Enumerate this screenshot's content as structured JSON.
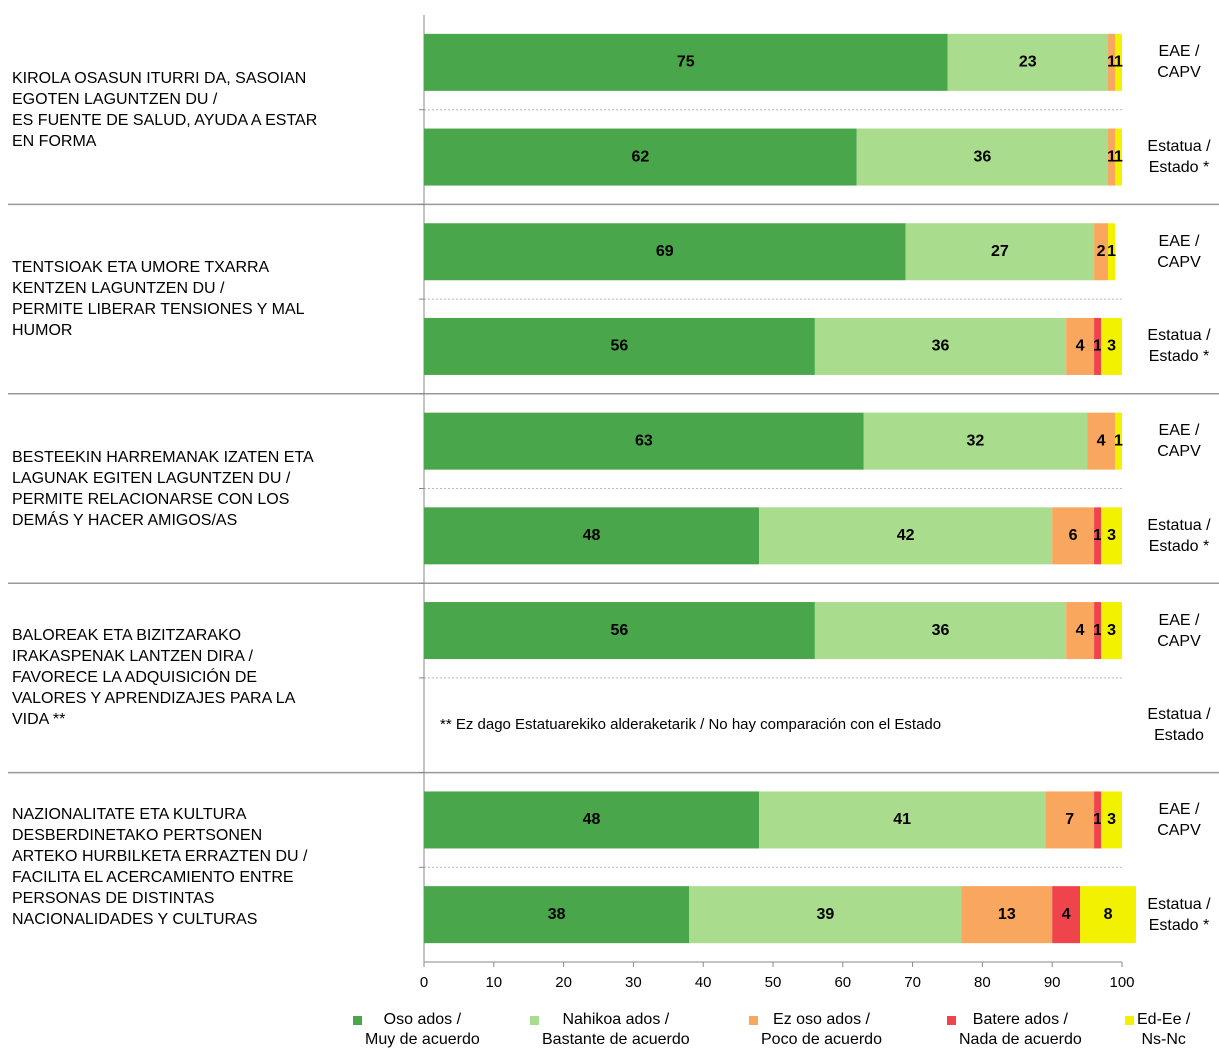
{
  "chart_data": {
    "type": "stacked_barh",
    "group_labels": [
      "KIROLA OSASUN ITURRI DA, SASOIAN\nEGOTEN LAGUNTZEN DU /\nES FUENTE DE SALUD, AYUDA A ESTAR\nEN FORMA",
      "TENTSIOAK ETA UMORE TXARRA\nKENTZEN LAGUNTZEN DU /\nPERMITE LIBERAR TENSIONES Y MAL\nHUMOR",
      "BESTEEKIN HARREMANAK IZATEN ETA\nLAGUNAK EGITEN LAGUNTZEN DU /\nPERMITE RELACIONARSE CON LOS\nDEMÁS Y HACER AMIGOS/AS",
      "BALOREAK ETA BIZITZARAKO\nIRAKASPENAK LANTZEN DIRA /\nFAVORECE LA ADQUISICIÓN DE\nVALORES Y APRENDIZAJES PARA LA\nVIDA **",
      "NAZIONALITATE ETA KULTURA\nDESBERDINETAKO PERTSONEN\nARTEKO HURBILKETA ERRAZTEN DU /\nFACILITA EL ACERCAMIENTO ENTRE\nPERSONAS DE DISTINTAS\nNACIONALIDADES Y CULTURAS"
    ],
    "categories": [
      "EAE /\nCAPV",
      "Estatua /\nEstado *",
      "EAE /\nCAPV",
      "Estatua /\nEstado *",
      "EAE /\nCAPV",
      "Estatua /\nEstado *",
      "EAE /\nCAPV",
      "Estatua /\nEstado",
      "EAE /\nCAPV",
      "Estatua /\nEstado *"
    ],
    "series": [
      {
        "name": "Oso ados /\nMuy de acuerdo",
        "color": "#4aa64a",
        "values": [
          75,
          62,
          69,
          56,
          63,
          48,
          56,
          null,
          48,
          38
        ]
      },
      {
        "name": "Nahikoa ados /\nBastante de acuerdo",
        "color": "#a9dc8c",
        "values": [
          23,
          36,
          27,
          36,
          32,
          42,
          36,
          null,
          41,
          39
        ]
      },
      {
        "name": "Ez oso ados /\nPoco de acuerdo",
        "color": "#f9a65e",
        "values": [
          1,
          1,
          2,
          4,
          4,
          6,
          4,
          null,
          7,
          13
        ]
      },
      {
        "name": "Batere ados /\nNada de acuerdo",
        "color": "#f0444c",
        "values": [
          null,
          null,
          null,
          1,
          null,
          1,
          1,
          null,
          1,
          4
        ]
      },
      {
        "name": "Ed-Ee /\nNs-Nc",
        "color": "#f2f200",
        "values": [
          1,
          1,
          1,
          3,
          1,
          3,
          3,
          null,
          3,
          8
        ]
      }
    ],
    "annotation": "** Ez dago Estatuarekiko alderaketarik / No hay comparación con el Estado",
    "xlim": [
      0,
      100
    ],
    "xticks": [
      0,
      10,
      20,
      30,
      40,
      50,
      60,
      70,
      80,
      90,
      100
    ]
  }
}
